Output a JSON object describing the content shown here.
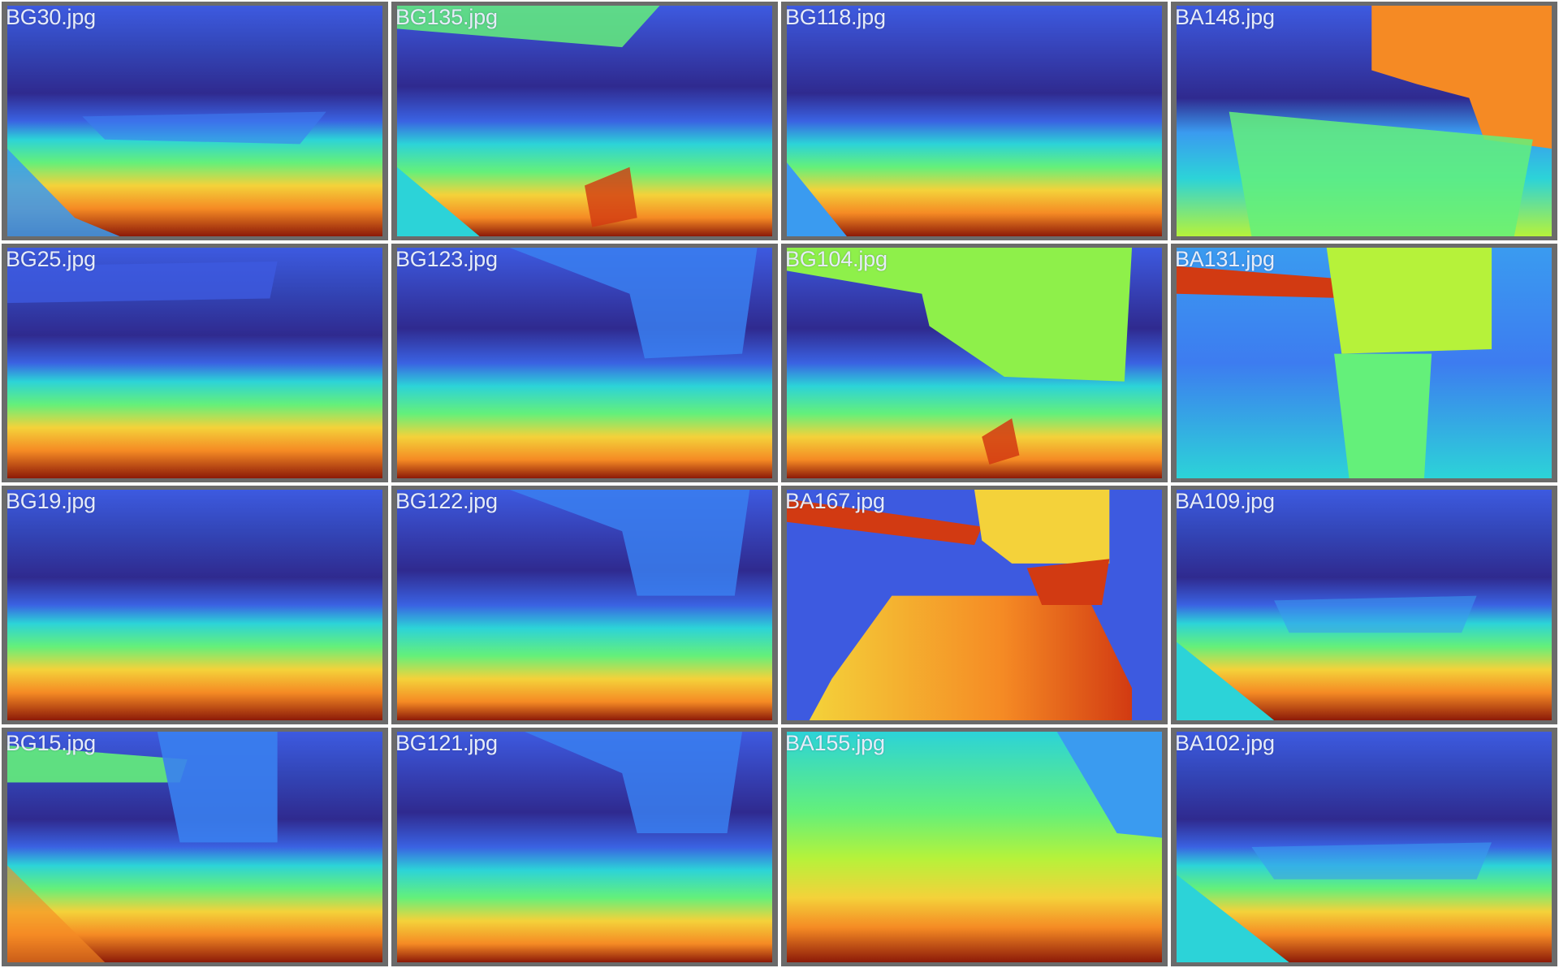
{
  "palette": {
    "deep_blue": "#2f2a8f",
    "blue": "#3d5ae0",
    "light_blue": "#3a9bf0",
    "cyan": "#2cd3d8",
    "green": "#64f07a",
    "yellow_green": "#b6f23a",
    "yellow": "#f4d23a",
    "orange": "#f58a24",
    "red": "#d23a12",
    "dark_red": "#8c1a08",
    "frame": "#6b6b6b",
    "label_color": "#e6ecf8"
  },
  "tiles": [
    {
      "label": "BG30.jpg",
      "variant": "a"
    },
    {
      "label": "BG135.jpg",
      "variant": "b"
    },
    {
      "label": "BG118.jpg",
      "variant": "a"
    },
    {
      "label": "BA148.jpg",
      "variant": "c"
    },
    {
      "label": "BG25.jpg",
      "variant": "a"
    },
    {
      "label": "BG123.jpg",
      "variant": "b"
    },
    {
      "label": "BG104.jpg",
      "variant": "d"
    },
    {
      "label": "BA131.jpg",
      "variant": "e"
    },
    {
      "label": "BG19.jpg",
      "variant": "a"
    },
    {
      "label": "BG122.jpg",
      "variant": "b"
    },
    {
      "label": "BA167.jpg",
      "variant": "f"
    },
    {
      "label": "BA109.jpg",
      "variant": "a"
    },
    {
      "label": "BG15.jpg",
      "variant": "a"
    },
    {
      "label": "BG121.jpg",
      "variant": "b"
    },
    {
      "label": "BA155.jpg",
      "variant": "g"
    },
    {
      "label": "BA102.jpg",
      "variant": "a"
    }
  ]
}
